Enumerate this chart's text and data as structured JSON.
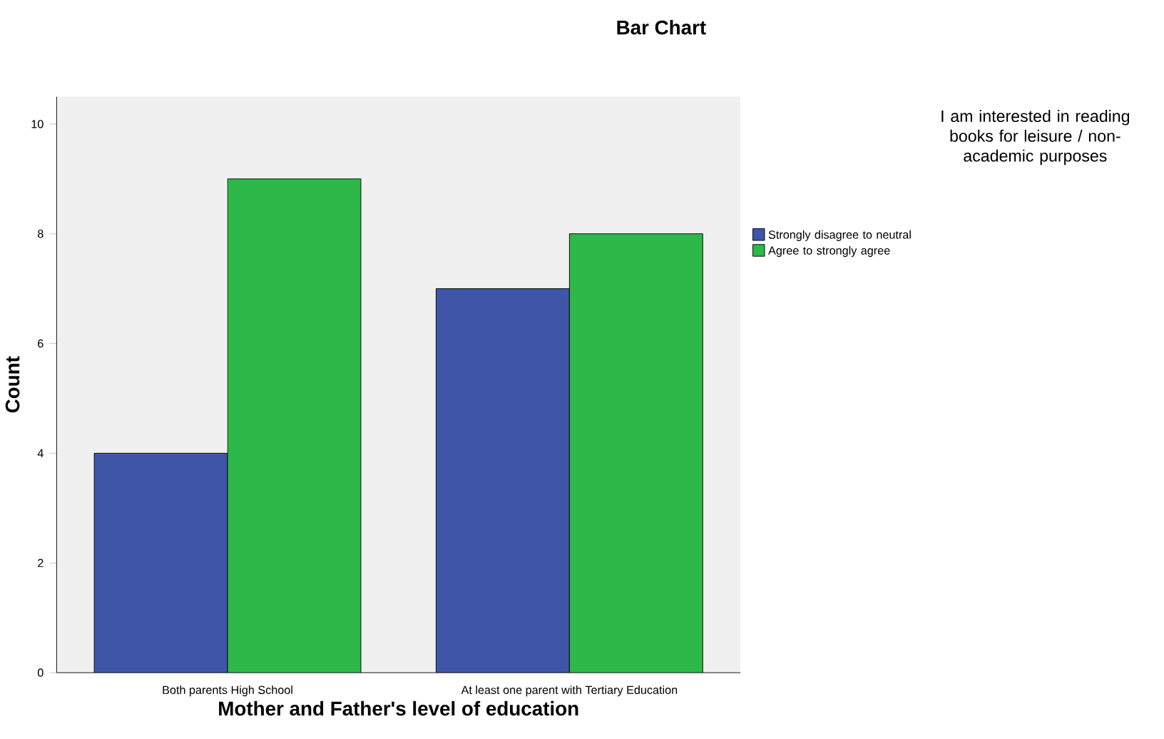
{
  "chart_data": {
    "type": "bar",
    "title": "Bar Chart",
    "xlabel": "Mother and Father's level of education",
    "ylabel": "Count",
    "legend_title": "I am interested in reading books for leisure / non-academic purposes",
    "categories": [
      "Both parents High School",
      "At least one parent with Tertiary Education"
    ],
    "series": [
      {
        "name": "Strongly disagree to neutral",
        "color": "#3f56a8",
        "values": [
          4,
          7
        ]
      },
      {
        "name": "Agree to strongly agree",
        "color": "#2db84a",
        "values": [
          9,
          8
        ]
      }
    ],
    "ylim": [
      0,
      10.5
    ],
    "yticks": [
      0,
      2,
      4,
      6,
      8,
      10
    ],
    "grid": false,
    "legend": "right"
  }
}
